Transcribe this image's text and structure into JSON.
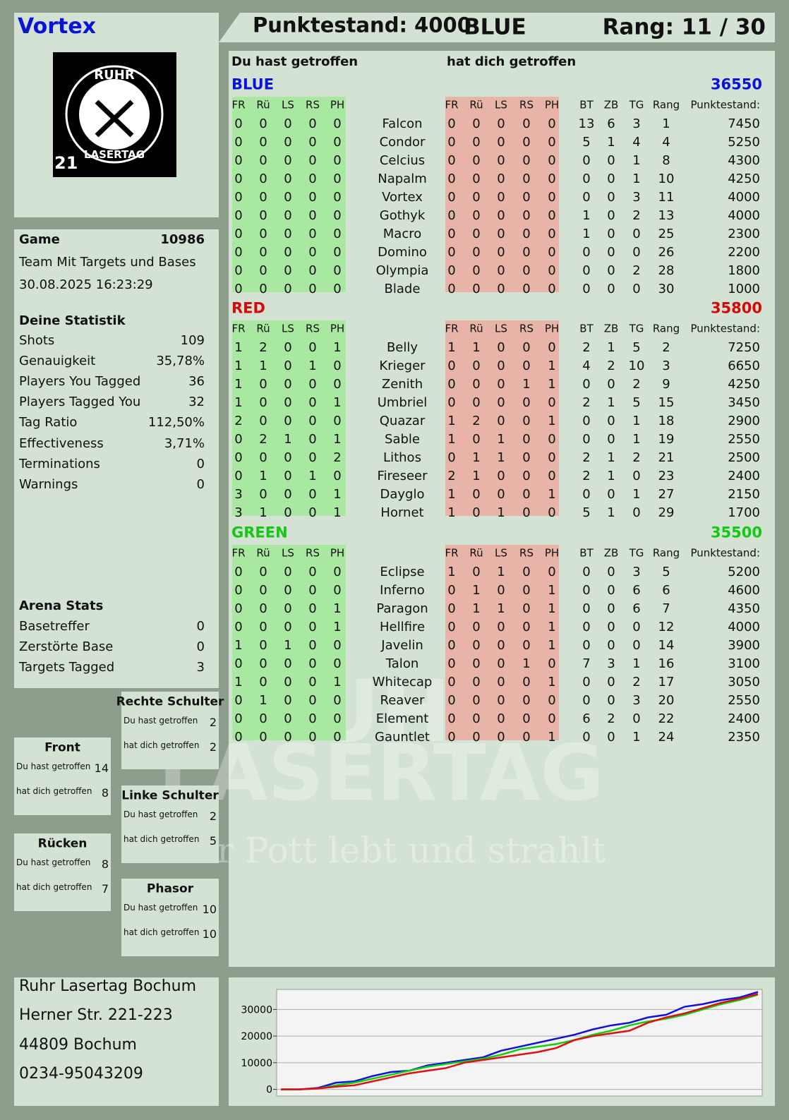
{
  "header": {
    "player": "Vortex",
    "score": "Punktestand: 4000",
    "team": "BLUE",
    "rank": "Rang: 11 / 30"
  },
  "logo": {
    "top": "RUHR",
    "bottom": "LASERTAG",
    "number": "21"
  },
  "watermark": [
    "RUHR",
    "LASERTAG",
    "Der Pott lebt und strahlt"
  ],
  "game": {
    "label": "Game",
    "number": 10986,
    "mode": "Team Mit Targets und Bases",
    "date": "30.08.2025 16:23:29"
  },
  "stats": {
    "title": "Deine Statistik",
    "rows": [
      [
        "Shots",
        109
      ],
      [
        "Genauigkeit",
        "35,78%"
      ],
      [
        "Players You Tagged",
        36
      ],
      [
        "Players Tagged You",
        32
      ],
      [
        "Tag Ratio",
        "112,50%"
      ],
      [
        "Effectiveness",
        "3,71%"
      ],
      [
        "Terminations",
        0
      ],
      [
        "Warnings",
        0
      ]
    ]
  },
  "arena": {
    "title": "Arena Stats",
    "rows": [
      [
        "Basetreffer",
        0
      ],
      [
        "Zerstörte Base",
        0
      ],
      [
        "Targets Tagged",
        3
      ]
    ]
  },
  "zones": [
    {
      "title": "Front",
      "rows": [
        [
          "Du hast getroffen",
          14
        ],
        [
          "hat dich getroffen",
          8
        ]
      ]
    },
    {
      "title": "Rechte Schulter",
      "rows": [
        [
          "Du hast getroffen",
          2
        ],
        [
          "hat dich getroffen",
          2
        ]
      ]
    },
    {
      "title": "Linke Schulter",
      "rows": [
        [
          "Du hast getroffen",
          2
        ],
        [
          "hat dich getroffen",
          5
        ]
      ]
    },
    {
      "title": "Rücken",
      "rows": [
        [
          "Du hast getroffen",
          8
        ],
        [
          "hat dich getroffen",
          7
        ]
      ]
    },
    {
      "title": "Phasor",
      "rows": [
        [
          "Du hast getroffen",
          10
        ],
        [
          "hat dich getroffen",
          10
        ]
      ]
    }
  ],
  "address": [
    "Ruhr Lasertag Bochum",
    "Herner Str. 221-223",
    "44809 Bochum",
    "0234-95043209"
  ],
  "table": {
    "given_head": "Du hast getroffen",
    "received_head": "hat dich getroffen",
    "hit_columns": [
      "FR",
      "Rü",
      "LS",
      "RS",
      "PH"
    ],
    "stat_columns": [
      "BT",
      "ZB",
      "TG",
      "Rang",
      "Punktestand:"
    ],
    "teams": [
      {
        "name": "BLUE",
        "color": "#0a14d8",
        "total": 36550,
        "players": [
          [
            "Falcon",
            [
              0,
              0,
              0,
              0,
              0
            ],
            [
              0,
              0,
              0,
              0,
              0
            ],
            13,
            6,
            3,
            1,
            7450
          ],
          [
            "Condor",
            [
              0,
              0,
              0,
              0,
              0
            ],
            [
              0,
              0,
              0,
              0,
              0
            ],
            5,
            1,
            4,
            4,
            5250
          ],
          [
            "Celcius",
            [
              0,
              0,
              0,
              0,
              0
            ],
            [
              0,
              0,
              0,
              0,
              0
            ],
            0,
            0,
            1,
            8,
            4300
          ],
          [
            "Napalm",
            [
              0,
              0,
              0,
              0,
              0
            ],
            [
              0,
              0,
              0,
              0,
              0
            ],
            0,
            0,
            1,
            10,
            4250
          ],
          [
            "Vortex",
            [
              0,
              0,
              0,
              0,
              0
            ],
            [
              0,
              0,
              0,
              0,
              0
            ],
            0,
            0,
            3,
            11,
            4000
          ],
          [
            "Gothyk",
            [
              0,
              0,
              0,
              0,
              0
            ],
            [
              0,
              0,
              0,
              0,
              0
            ],
            1,
            0,
            2,
            13,
            4000
          ],
          [
            "Macro",
            [
              0,
              0,
              0,
              0,
              0
            ],
            [
              0,
              0,
              0,
              0,
              0
            ],
            1,
            0,
            0,
            25,
            2300
          ],
          [
            "Domino",
            [
              0,
              0,
              0,
              0,
              0
            ],
            [
              0,
              0,
              0,
              0,
              0
            ],
            0,
            0,
            0,
            26,
            2200
          ],
          [
            "Olympia",
            [
              0,
              0,
              0,
              0,
              0
            ],
            [
              0,
              0,
              0,
              0,
              0
            ],
            0,
            0,
            2,
            28,
            1800
          ],
          [
            "Blade",
            [
              0,
              0,
              0,
              0,
              0
            ],
            [
              0,
              0,
              0,
              0,
              0
            ],
            0,
            0,
            0,
            30,
            1000
          ]
        ]
      },
      {
        "name": "RED",
        "color": "#d40a0a",
        "total": 35800,
        "players": [
          [
            "Belly",
            [
              1,
              2,
              0,
              0,
              1
            ],
            [
              1,
              1,
              0,
              0,
              0
            ],
            2,
            1,
            5,
            2,
            7250
          ],
          [
            "Krieger",
            [
              1,
              1,
              0,
              1,
              0
            ],
            [
              0,
              0,
              0,
              0,
              1
            ],
            4,
            2,
            10,
            3,
            6650
          ],
          [
            "Zenith",
            [
              1,
              0,
              0,
              0,
              0
            ],
            [
              0,
              0,
              0,
              1,
              1
            ],
            0,
            0,
            2,
            9,
            4250
          ],
          [
            "Umbriel",
            [
              1,
              0,
              0,
              0,
              1
            ],
            [
              0,
              0,
              0,
              0,
              0
            ],
            2,
            1,
            5,
            15,
            3450
          ],
          [
            "Quazar",
            [
              2,
              0,
              0,
              0,
              0
            ],
            [
              1,
              2,
              0,
              0,
              1
            ],
            0,
            0,
            1,
            18,
            2900
          ],
          [
            "Sable",
            [
              0,
              2,
              1,
              0,
              1
            ],
            [
              1,
              0,
              1,
              0,
              0
            ],
            0,
            0,
            1,
            19,
            2550
          ],
          [
            "Lithos",
            [
              0,
              0,
              0,
              0,
              2
            ],
            [
              0,
              1,
              1,
              0,
              0
            ],
            2,
            1,
            2,
            21,
            2500
          ],
          [
            "Fireseer",
            [
              0,
              1,
              0,
              1,
              0
            ],
            [
              2,
              1,
              0,
              0,
              0
            ],
            2,
            1,
            0,
            23,
            2400
          ],
          [
            "Dayglo",
            [
              3,
              0,
              0,
              0,
              1
            ],
            [
              1,
              0,
              0,
              0,
              1
            ],
            0,
            0,
            1,
            27,
            2150
          ],
          [
            "Hornet",
            [
              3,
              1,
              0,
              0,
              1
            ],
            [
              1,
              0,
              1,
              0,
              0
            ],
            5,
            1,
            0,
            29,
            1700
          ]
        ]
      },
      {
        "name": "GREEN",
        "color": "#14c814",
        "total": 35500,
        "players": [
          [
            "Eclipse",
            [
              0,
              0,
              0,
              0,
              0
            ],
            [
              1,
              0,
              1,
              0,
              0
            ],
            0,
            0,
            3,
            5,
            5200
          ],
          [
            "Inferno",
            [
              0,
              0,
              0,
              0,
              0
            ],
            [
              0,
              1,
              0,
              0,
              1
            ],
            0,
            0,
            6,
            6,
            4600
          ],
          [
            "Paragon",
            [
              0,
              0,
              0,
              0,
              1
            ],
            [
              0,
              1,
              1,
              0,
              1
            ],
            0,
            0,
            6,
            7,
            4350
          ],
          [
            "Hellfire",
            [
              0,
              0,
              0,
              0,
              1
            ],
            [
              0,
              0,
              0,
              0,
              1
            ],
            0,
            0,
            0,
            12,
            4000
          ],
          [
            "Javelin",
            [
              1,
              0,
              1,
              0,
              0
            ],
            [
              0,
              0,
              0,
              0,
              1
            ],
            0,
            0,
            0,
            14,
            3900
          ],
          [
            "Talon",
            [
              0,
              0,
              0,
              0,
              0
            ],
            [
              0,
              0,
              0,
              1,
              0
            ],
            7,
            3,
            1,
            16,
            3100
          ],
          [
            "Whitecap",
            [
              1,
              0,
              0,
              0,
              1
            ],
            [
              0,
              0,
              0,
              0,
              1
            ],
            0,
            0,
            2,
            17,
            3050
          ],
          [
            "Reaver",
            [
              0,
              1,
              0,
              0,
              0
            ],
            [
              0,
              0,
              0,
              0,
              0
            ],
            0,
            0,
            3,
            20,
            2550
          ],
          [
            "Element",
            [
              0,
              0,
              0,
              0,
              0
            ],
            [
              0,
              0,
              0,
              0,
              0
            ],
            6,
            2,
            0,
            22,
            2400
          ],
          [
            "Gauntlet",
            [
              0,
              0,
              0,
              0,
              0
            ],
            [
              0,
              0,
              0,
              0,
              1
            ],
            0,
            0,
            1,
            24,
            2350
          ]
        ]
      }
    ]
  },
  "chart_data": {
    "type": "line",
    "ylim": [
      -2500,
      37500
    ],
    "yticks": [
      0,
      10000,
      20000,
      30000
    ],
    "grid": true,
    "series": [
      {
        "color": "#1010e0",
        "values": [
          0,
          0,
          500,
          2500,
          3000,
          5000,
          6500,
          7000,
          9000,
          10000,
          11000,
          12000,
          14500,
          16000,
          17500,
          19000,
          20500,
          22500,
          24000,
          25000,
          27000,
          28000,
          31000,
          32000,
          33500,
          34500,
          36550
        ]
      },
      {
        "color": "#10d010",
        "values": [
          0,
          0,
          300,
          1500,
          2500,
          4000,
          5500,
          7000,
          8500,
          9500,
          10500,
          11500,
          13000,
          15000,
          16000,
          17000,
          18500,
          20500,
          22000,
          24000,
          25500,
          26500,
          28000,
          30000,
          32000,
          33500,
          35500
        ]
      },
      {
        "color": "#e01010",
        "values": [
          0,
          0,
          300,
          1000,
          1500,
          3000,
          4500,
          6000,
          7000,
          8000,
          10000,
          11000,
          12000,
          13000,
          14000,
          15500,
          18500,
          20000,
          21000,
          22000,
          25000,
          27000,
          28500,
          30500,
          32500,
          34000,
          35800
        ]
      }
    ]
  }
}
